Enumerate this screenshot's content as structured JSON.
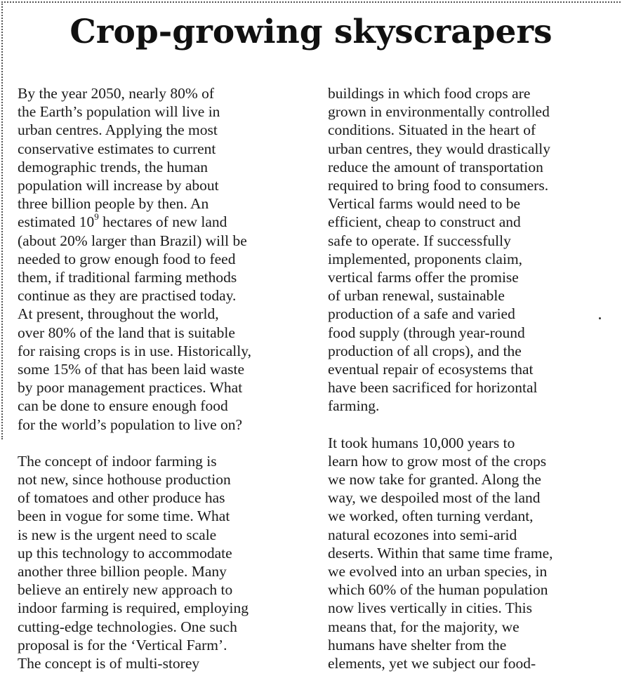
{
  "article": {
    "title": "Crop-growing skyscrapers",
    "left_column": [
      {
        "lines": [
          "By the year 2050, nearly 80% of",
          "the Earth’s population will live in",
          "urban centres. Applying the most",
          "conservative estimates to current",
          "demographic trends, the human",
          "population will increase by about",
          "three billion people by then. An",
          "__EXP__",
          "(about 20% larger than Brazil) will be",
          "needed to grow enough food to feed",
          "them, if traditional farming methods",
          "continue as they are practised today.",
          "At present, throughout the world,",
          "over 80% of the land that is suitable",
          "for raising crops is in use. Historically,",
          "some 15% of that has been laid waste",
          "by poor management practices. What",
          "can be done to ensure enough food",
          "for the world’s population to live on?"
        ]
      },
      {
        "lines": [
          "The concept of indoor farming is",
          "not new, since hothouse production",
          "of tomatoes and other produce has",
          "been in vogue for some time. What",
          "is new is the urgent need to scale",
          "up this technology to accommodate",
          "another three billion people. Many",
          "believe an entirely new approach to",
          "indoor farming is required, employing",
          "cutting-edge technologies. One such",
          "proposal is for the ‘Vertical Farm’.",
          "The concept is of multi-storey"
        ]
      }
    ],
    "exponent_line": {
      "before": "estimated 10",
      "exponent": "9",
      "after": " hectares of new land"
    },
    "right_column": [
      {
        "lines": [
          "buildings in which food crops are",
          "grown in environmentally controlled",
          "conditions. Situated in the heart of",
          "urban centres, they would drastically",
          "reduce the amount of transportation",
          "required to bring food to consumers.",
          "Vertical farms would need to be",
          "efficient, cheap to construct and",
          "safe to operate. If successfully",
          "implemented, proponents claim,",
          "vertical farms offer the promise",
          "of urban renewal, sustainable",
          "production of a safe and varied",
          "food supply (through year-round",
          "production of all crops), and the",
          "eventual repair of ecosystems that",
          "have been sacrificed for horizontal",
          "farming."
        ]
      },
      {
        "lines": [
          "It took humans 10,000 years to",
          "learn how to grow most of the crops",
          "we now take for granted. Along the",
          "way, we despoiled most of the land",
          "we worked, often turning verdant,",
          "natural ecozones into semi-arid",
          "deserts. Within that same time frame,",
          "we evolved into an urban species, in",
          "which 60% of the human population",
          "now lives vertically in cities. This",
          "means that, for the majority, we",
          "humans have shelter from the",
          "elements, yet we subject our food-"
        ]
      }
    ]
  }
}
